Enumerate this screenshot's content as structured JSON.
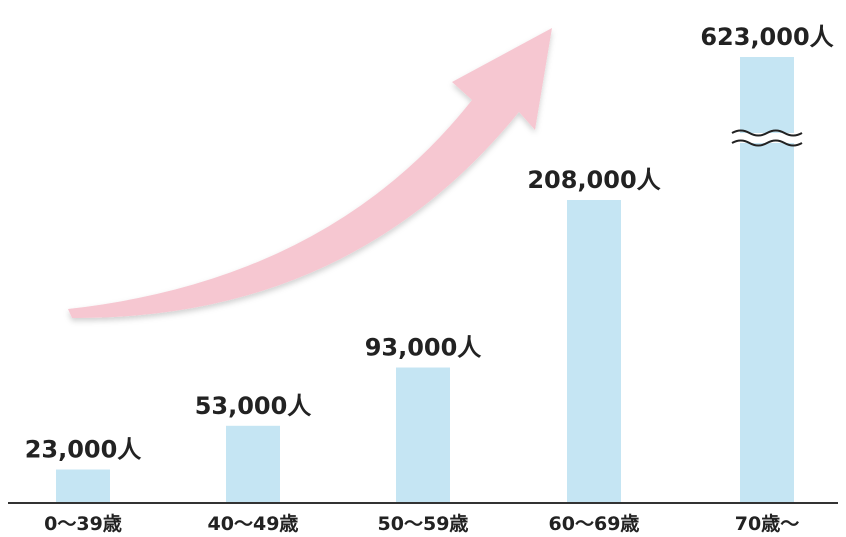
{
  "chart_data": {
    "type": "bar",
    "categories": [
      "0〜39歳",
      "40〜49歳",
      "50〜59歳",
      "60〜69歳",
      "70歳〜"
    ],
    "values": [
      23000,
      53000,
      93000,
      208000,
      623000
    ],
    "data_labels": [
      "23,000人",
      "53,000人",
      "93,000人",
      "208,000人",
      "623,000人"
    ],
    "axis_break_on": [
      "70歳〜"
    ],
    "title": "",
    "xlabel": "",
    "ylabel": "",
    "grid": false,
    "legend": "none",
    "colors": {
      "bar": "#c5e5f3",
      "arrow": "#f6c7d1",
      "axis": "#333333",
      "text": "#222222"
    }
  }
}
